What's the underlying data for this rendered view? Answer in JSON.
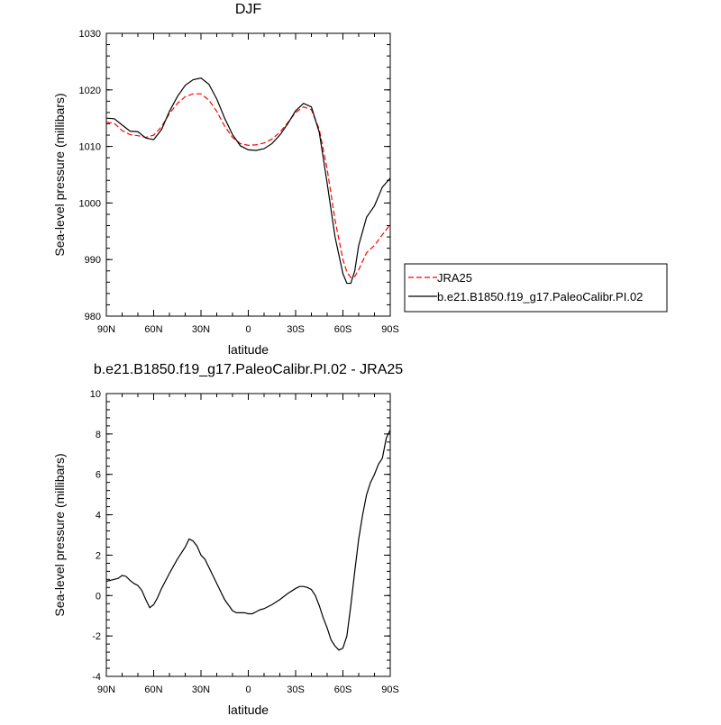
{
  "chart_data": [
    {
      "type": "line",
      "title": "DJF",
      "xlabel": "latitude",
      "ylabel": "Sea-level pressure (millibars)",
      "xlim": [
        90,
        -90
      ],
      "ylim": [
        980,
        1030
      ],
      "xtick_values": [
        90,
        60,
        30,
        0,
        -30,
        -60,
        -90
      ],
      "xtick_labels": [
        "90N",
        "60N",
        "30N",
        "0",
        "30S",
        "60S",
        "90S"
      ],
      "ytick_values": [
        980,
        990,
        1000,
        1010,
        1020,
        1030
      ],
      "ytick_labels": [
        "980",
        "990",
        "1000",
        "1010",
        "1020",
        "1030"
      ],
      "legend_position": "right",
      "series": [
        {
          "name": "JRA25",
          "color": "#ff0000",
          "dash": "dashed",
          "x": [
            90,
            85,
            80,
            75,
            70,
            65,
            60,
            55,
            50,
            45,
            40,
            35,
            30,
            25,
            20,
            15,
            10,
            5,
            0,
            -5,
            -10,
            -15,
            -20,
            -25,
            -30,
            -35,
            -40,
            -45,
            -50,
            -55,
            -60,
            -62.5,
            -65,
            -67.5,
            -70,
            -75,
            -80,
            -85,
            -90
          ],
          "y": [
            1014.3,
            1014.1,
            1012.8,
            1012.1,
            1011.9,
            1011.6,
            1012.0,
            1013.5,
            1015.8,
            1017.6,
            1018.8,
            1019.3,
            1019.3,
            1018.2,
            1016.2,
            1013.6,
            1011.6,
            1010.5,
            1010.2,
            1010.3,
            1010.6,
            1011.3,
            1012.5,
            1014.2,
            1016.0,
            1017.0,
            1016.5,
            1013.0,
            1006.0,
            997.0,
            990.0,
            987.8,
            986.8,
            987.0,
            988.2,
            991.2,
            992.5,
            994.4,
            996.2
          ]
        },
        {
          "name": "b.e21.B1850.f19_g17.PaleoCalibr.PI.02",
          "color": "#000000",
          "dash": "solid",
          "x": [
            90,
            85,
            80,
            75,
            70,
            65,
            60,
            55,
            50,
            45,
            40,
            35,
            30,
            25,
            20,
            15,
            10,
            5,
            0,
            -5,
            -10,
            -15,
            -20,
            -25,
            -30,
            -35,
            -40,
            -45,
            -50,
            -55,
            -60,
            -62.5,
            -65,
            -67.5,
            -70,
            -75,
            -80,
            -85,
            -90
          ],
          "y": [
            1015.0,
            1014.9,
            1013.8,
            1012.7,
            1012.6,
            1011.5,
            1011.2,
            1013.0,
            1016.2,
            1018.8,
            1020.8,
            1021.8,
            1022.1,
            1021.0,
            1018.4,
            1015.0,
            1012.1,
            1010.1,
            1009.4,
            1009.3,
            1009.6,
            1010.5,
            1012.0,
            1014.0,
            1016.3,
            1017.6,
            1017.0,
            1012.5,
            1003.5,
            994.0,
            987.5,
            985.8,
            985.8,
            988.0,
            992.5,
            997.5,
            999.5,
            1002.8,
            1004.4
          ]
        }
      ]
    },
    {
      "type": "line",
      "title": "b.e21.B1850.f19_g17.PaleoCalibr.PI.02 - JRA25",
      "xlabel": "latitude",
      "ylabel": "Sea-level pressure (millibars)",
      "xlim": [
        90,
        -90
      ],
      "ylim": [
        -4,
        10
      ],
      "xtick_values": [
        90,
        60,
        30,
        0,
        -30,
        -60,
        -90
      ],
      "xtick_labels": [
        "90N",
        "60N",
        "30N",
        "0",
        "30S",
        "60S",
        "90S"
      ],
      "ytick_values": [
        -4,
        -2,
        0,
        2,
        4,
        6,
        8,
        10
      ],
      "ytick_labels": [
        "-4",
        "-2",
        "0",
        "2",
        "4",
        "6",
        "8",
        "10"
      ],
      "series": [
        {
          "color": "#000000",
          "dash": "solid",
          "x": [
            90,
            87.5,
            85,
            82.5,
            80,
            77.5,
            75,
            72.5,
            70,
            67.5,
            65,
            62.5,
            60,
            57.5,
            55,
            50,
            45,
            40,
            37.5,
            35,
            32.5,
            30,
            27.5,
            25,
            20,
            15,
            10,
            7.5,
            5,
            2.5,
            0,
            -2.5,
            -5,
            -7.5,
            -10,
            -15,
            -20,
            -25,
            -30,
            -32.5,
            -35,
            -37.5,
            -40,
            -42.5,
            -45,
            -47.5,
            -50,
            -52.5,
            -55,
            -57.5,
            -60,
            -62.5,
            -65,
            -67.5,
            -70,
            -72.5,
            -75,
            -77.5,
            -80,
            -82.5,
            -85,
            -87.5,
            -90
          ],
          "y": [
            0.7,
            0.75,
            0.8,
            0.85,
            1.0,
            0.95,
            0.75,
            0.6,
            0.5,
            0.25,
            -0.2,
            -0.6,
            -0.45,
            -0.1,
            0.35,
            1.1,
            1.8,
            2.4,
            2.8,
            2.7,
            2.45,
            2.0,
            1.8,
            1.4,
            0.6,
            -0.2,
            -0.75,
            -0.85,
            -0.85,
            -0.85,
            -0.9,
            -0.9,
            -0.8,
            -0.7,
            -0.65,
            -0.45,
            -0.2,
            0.1,
            0.35,
            0.45,
            0.45,
            0.4,
            0.3,
            0.0,
            -0.5,
            -1.1,
            -1.6,
            -2.2,
            -2.5,
            -2.7,
            -2.6,
            -2.0,
            -0.5,
            1.2,
            2.8,
            4.0,
            5.0,
            5.6,
            6.0,
            6.5,
            6.8,
            7.8,
            8.2
          ]
        }
      ]
    }
  ]
}
